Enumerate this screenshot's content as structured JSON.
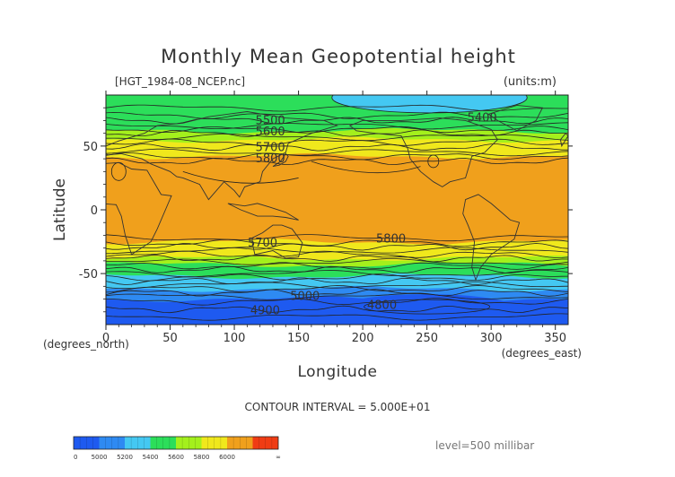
{
  "chart_data": {
    "type": "heatmap",
    "title": "Monthly Mean Geopotential height",
    "file_label": "[HGT_1984-08_NCEP.nc]",
    "units": "(units:m)",
    "xlabel": "Longitude",
    "ylabel": "Latitude",
    "x_unit": "(degrees_east)",
    "y_unit": "(degrees_north)",
    "xlim": [
      0,
      360
    ],
    "ylim": [
      -90,
      90
    ],
    "x_ticks": [
      "0",
      "50",
      "100",
      "150",
      "200",
      "250",
      "300",
      "350"
    ],
    "y_ticks": [
      "50",
      "0",
      "-50"
    ],
    "contour_interval": "CONTOUR INTERVAL = 5.000E+01",
    "level": "level=500 millibar",
    "contour_labels": [
      {
        "text": "5500",
        "lon": 128,
        "lat": 70
      },
      {
        "text": "5600",
        "lon": 128,
        "lat": 61
      },
      {
        "text": "5700",
        "lon": 128,
        "lat": 49
      },
      {
        "text": "5800",
        "lon": 128,
        "lat": 40
      },
      {
        "text": "5400",
        "lon": 293,
        "lat": 72
      },
      {
        "text": "5800",
        "lon": 222,
        "lat": -23
      },
      {
        "text": "5700",
        "lon": 122,
        "lat": -26
      },
      {
        "text": "5000",
        "lon": 155,
        "lat": -68
      },
      {
        "text": "4900",
        "lon": 124,
        "lat": -79
      },
      {
        "text": "4800",
        "lon": 215,
        "lat": -75
      }
    ],
    "legend_labels": [
      "0",
      "5000",
      "5200",
      "5400",
      "5600",
      "5800",
      "6000",
      "∞"
    ],
    "legend_colors": [
      "#1e5af0",
      "#2e8af2",
      "#44c8f2",
      "#2cde5a",
      "#a4f01c",
      "#f0e81c",
      "#f0a01c",
      "#f03c14"
    ],
    "bands": [
      {
        "lat": 90,
        "color": "#2cde5a"
      },
      {
        "lat": 70,
        "color": "#2cde5a"
      },
      {
        "lat": 62,
        "color": "#a4f01c"
      },
      {
        "lat": 55,
        "color": "#f0e81c"
      },
      {
        "lat": 42,
        "color": "#f0a01c"
      },
      {
        "lat": -25,
        "color": "#f0e81c"
      },
      {
        "lat": -38,
        "color": "#a4f01c"
      },
      {
        "lat": -43,
        "color": "#2cde5a"
      },
      {
        "lat": -52,
        "color": "#44c8f2"
      },
      {
        "lat": -62,
        "color": "#2e8af2"
      },
      {
        "lat": -70,
        "color": "#1e5af0"
      }
    ]
  }
}
